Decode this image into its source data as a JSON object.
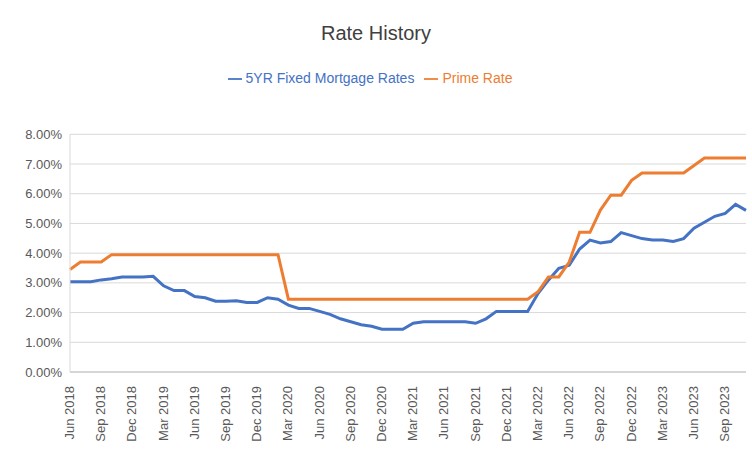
{
  "chart_data": {
    "type": "line",
    "title": "Rate History",
    "categories": [
      "Jun 2018",
      null,
      null,
      "Sep 2018",
      null,
      null,
      "Dec 2018",
      null,
      null,
      "Mar 2019",
      null,
      null,
      "Jun 2019",
      null,
      null,
      "Sep 2019",
      null,
      null,
      "Dec 2019",
      null,
      null,
      "Mar 2020",
      null,
      null,
      "Jun 2020",
      null,
      null,
      "Sep 2020",
      null,
      null,
      "Dec 2020",
      null,
      null,
      "Mar 2021",
      null,
      null,
      "Jun 2021",
      null,
      null,
      "Sep 2021",
      null,
      null,
      "Dec 2021",
      null,
      null,
      "Mar 2022",
      null,
      null,
      "Jun 2022",
      null,
      null,
      "Sep 2022",
      null,
      null,
      "Dec 2022",
      null,
      null,
      "Mar 2023",
      null,
      null,
      "Jun 2023",
      null,
      null,
      "Sep 2023",
      null,
      null
    ],
    "series": [
      {
        "name": "5YR Fixed Mortgage Rates",
        "color": "#4472c4",
        "values": [
          3.04,
          3.04,
          3.04,
          3.1,
          3.14,
          3.2,
          3.2,
          3.2,
          3.22,
          2.9,
          2.74,
          2.74,
          2.54,
          2.5,
          2.38,
          2.38,
          2.4,
          2.34,
          2.34,
          2.5,
          2.45,
          2.25,
          2.14,
          2.14,
          2.04,
          1.94,
          1.79,
          1.69,
          1.59,
          1.54,
          1.44,
          1.44,
          1.44,
          1.64,
          1.69,
          1.69,
          1.69,
          1.69,
          1.69,
          1.64,
          1.79,
          2.04,
          2.04,
          2.04,
          2.04,
          2.64,
          3.09,
          3.49,
          3.59,
          4.14,
          4.44,
          4.34,
          4.39,
          4.69,
          4.59,
          4.49,
          4.44,
          4.44,
          4.39,
          4.49,
          4.84,
          5.04,
          5.24,
          5.34,
          5.64,
          5.44
        ]
      },
      {
        "name": "Prime Rate",
        "color": "#ed7d31",
        "values": [
          3.45,
          3.7,
          3.7,
          3.7,
          3.95,
          3.95,
          3.95,
          3.95,
          3.95,
          3.95,
          3.95,
          3.95,
          3.95,
          3.95,
          3.95,
          3.95,
          3.95,
          3.95,
          3.95,
          3.95,
          3.95,
          2.45,
          2.45,
          2.45,
          2.45,
          2.45,
          2.45,
          2.45,
          2.45,
          2.45,
          2.45,
          2.45,
          2.45,
          2.45,
          2.45,
          2.45,
          2.45,
          2.45,
          2.45,
          2.45,
          2.45,
          2.45,
          2.45,
          2.45,
          2.45,
          2.7,
          3.2,
          3.2,
          3.7,
          4.7,
          4.7,
          5.45,
          5.95,
          5.95,
          6.45,
          6.7,
          6.7,
          6.7,
          6.7,
          6.7,
          6.95,
          7.2,
          7.2,
          7.2,
          7.2,
          7.2
        ]
      }
    ],
    "ylim": [
      0,
      8
    ],
    "yticks": [
      {
        "value": 0,
        "label": "0.00%"
      },
      {
        "value": 1,
        "label": "1.00%"
      },
      {
        "value": 2,
        "label": "2.00%"
      },
      {
        "value": 3,
        "label": "3.00%"
      },
      {
        "value": 4,
        "label": "4.00%"
      },
      {
        "value": 5,
        "label": "5.00%"
      },
      {
        "value": 6,
        "label": "6.00%"
      },
      {
        "value": 7,
        "label": "7.00%"
      },
      {
        "value": 8,
        "label": "8.00%"
      }
    ],
    "grid": true,
    "legend": "top"
  }
}
